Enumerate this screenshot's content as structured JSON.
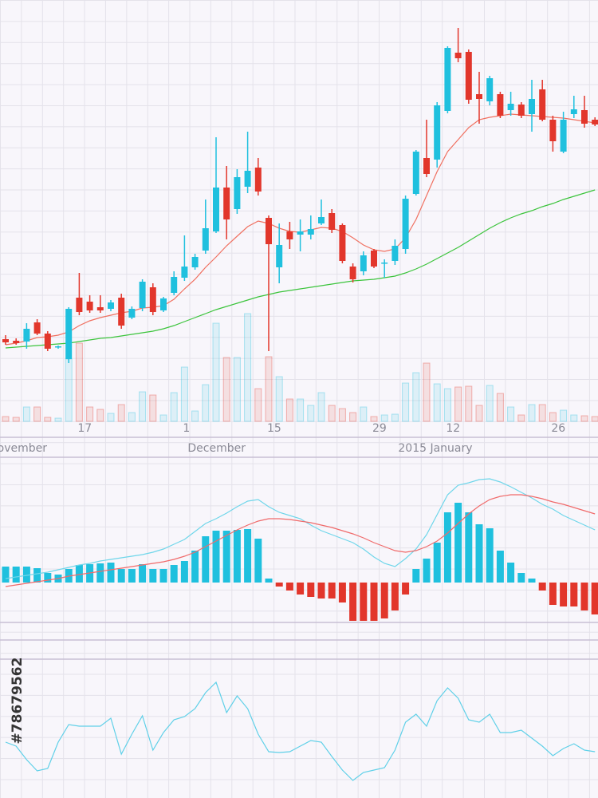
{
  "chart_data": [
    {
      "type": "candlestick",
      "categories": [
        null,
        null,
        null,
        null,
        null,
        null,
        null,
        "17",
        null,
        null,
        null,
        null,
        null,
        null,
        null,
        null,
        null,
        "1",
        null,
        null,
        null,
        null,
        null,
        null,
        null,
        "15",
        null,
        null,
        null,
        null,
        null,
        null,
        null,
        null,
        null,
        "29",
        null,
        null,
        null,
        null,
        null,
        null,
        "12",
        null,
        null,
        null,
        null,
        null,
        null,
        null,
        null,
        null,
        "26",
        null,
        null,
        null,
        null
      ],
      "months": [
        "November",
        null,
        null,
        null,
        null,
        null,
        null,
        null,
        null,
        null,
        null,
        null,
        null,
        null,
        null,
        null,
        null,
        "December",
        null,
        null,
        null,
        null,
        null,
        null,
        null,
        null,
        null,
        null,
        null,
        null,
        null,
        null,
        null,
        null,
        null,
        null,
        null,
        "2015 January",
        null,
        null,
        null,
        null,
        null,
        null,
        null,
        null,
        null,
        null,
        null,
        null,
        null,
        null,
        null,
        null,
        null,
        null,
        null
      ],
      "open": [
        21,
        20.6,
        20.4,
        25.2,
        22.4,
        19,
        16,
        31.4,
        30.4,
        29,
        28.6,
        31.4,
        26.4,
        28.8,
        34,
        28.2,
        32.6,
        36.4,
        39,
        43.2,
        48,
        59,
        53.6,
        59.2,
        64,
        51.4,
        39,
        48,
        47.2,
        47.2,
        50,
        52.6,
        49.6,
        39.2,
        38,
        43.2,
        40,
        40.6,
        43.6,
        57.4,
        66.4,
        66,
        78.2,
        92.8,
        93,
        82.4,
        80.6,
        82.4,
        78.4,
        79.8,
        77.4,
        83.6,
        76,
        68,
        77.4,
        78.4,
        76
      ],
      "high": [
        22,
        21.2,
        25,
        26,
        23,
        19.4,
        29,
        37.6,
        32,
        32,
        30.8,
        32.4,
        29.2,
        36,
        35,
        31.6,
        38,
        47,
        42.4,
        56,
        71.6,
        64.4,
        63.6,
        73,
        66.4,
        52,
        50,
        50.4,
        51,
        52,
        56,
        53.6,
        50,
        40,
        43,
        43.6,
        41,
        46,
        57,
        68.4,
        76,
        80.4,
        94.4,
        99,
        93.6,
        88,
        87,
        83,
        83,
        80.4,
        86,
        86,
        77,
        78,
        82,
        82,
        76.6
      ],
      "low": [
        19.6,
        19.6,
        18.6,
        22,
        18,
        18.6,
        15,
        27,
        27.6,
        27.6,
        28,
        23.6,
        26,
        28,
        27,
        27.8,
        32,
        35.6,
        38.4,
        42.4,
        47.6,
        46,
        52.4,
        57.6,
        57,
        18,
        35,
        43.6,
        43,
        46,
        49.6,
        47.6,
        40,
        35.2,
        37,
        38.8,
        36.4,
        39.6,
        42.4,
        57,
        61.6,
        64,
        77.6,
        90.4,
        80,
        75,
        79.6,
        76.4,
        77,
        76.4,
        73,
        75.6,
        68,
        67.6,
        76.4,
        74,
        74.4
      ],
      "close": [
        20.2,
        20,
        23.6,
        22.4,
        18.6,
        19.2,
        28.6,
        27.8,
        28.2,
        28.2,
        30.2,
        24.4,
        28.6,
        35.4,
        27.8,
        31.2,
        36.6,
        39.2,
        41.6,
        48.8,
        59,
        51,
        61.6,
        63.2,
        58,
        44.8,
        44.6,
        46,
        48,
        48.6,
        51.6,
        48.4,
        40.6,
        36,
        42,
        39.2,
        40.2,
        44.4,
        56.2,
        68,
        62.4,
        79.6,
        94,
        91.4,
        81,
        81.2,
        86.4,
        77,
        80,
        77,
        81.2,
        76,
        70.6,
        76,
        78.6,
        75,
        74.8
      ],
      "up_color": "#1fc0de",
      "down_color": "#e2362b",
      "series": [
        {
          "color": "#f07060",
          "values": [
            19.6,
            20,
            20.6,
            21.4,
            21.6,
            22,
            22.8,
            24.4,
            25.6,
            26.4,
            27,
            27.6,
            28,
            28.8,
            29,
            29.4,
            31,
            33.6,
            36,
            39,
            41.6,
            44.4,
            46.8,
            49.2,
            50.6,
            50,
            48.8,
            48,
            47.8,
            48.4,
            49,
            48.8,
            48,
            46.4,
            44.6,
            43.4,
            43,
            43.6,
            46.4,
            51,
            57,
            63,
            68,
            71,
            74,
            76,
            76.6,
            77,
            77.4,
            77.2,
            77,
            76.8,
            76.6,
            76.4,
            76,
            75.6,
            75.2
          ]
        },
        {
          "color": "#3cc43c",
          "values": [
            18.8,
            19,
            19.2,
            19.4,
            19.6,
            19.8,
            20,
            20.4,
            20.8,
            21.2,
            21.4,
            21.8,
            22.2,
            22.6,
            23,
            23.6,
            24.4,
            25.4,
            26.4,
            27.4,
            28.4,
            29.2,
            30,
            30.8,
            31.6,
            32.2,
            32.8,
            33.2,
            33.6,
            34,
            34.4,
            34.8,
            35.2,
            35.6,
            35.8,
            36,
            36.4,
            36.8,
            37.6,
            38.6,
            39.8,
            41.2,
            42.6,
            44,
            45.6,
            47.2,
            48.8,
            50.2,
            51.4,
            52.4,
            53.2,
            54.2,
            55,
            56,
            56.8,
            57.6,
            58.4
          ]
        }
      ],
      "volume": [
        6,
        5,
        18,
        18,
        5,
        4,
        78,
        98,
        18,
        15,
        10,
        21,
        11,
        37,
        33,
        8,
        36,
        68,
        13,
        46,
        123,
        80,
        80,
        135,
        41,
        81,
        56,
        28,
        28,
        20,
        36,
        20,
        16,
        11,
        18,
        6,
        8,
        9,
        48,
        61,
        73,
        47,
        41,
        43,
        44,
        20,
        45,
        35,
        18,
        8,
        21,
        21,
        11,
        14,
        8,
        7,
        6
      ],
      "ylim": [
        0,
        106
      ],
      "y2lim": [
        0,
        150
      ],
      "grid": true
    },
    {
      "type": "macd",
      "values": [
        20,
        20,
        20,
        18,
        12,
        10,
        17,
        22,
        23,
        24,
        25,
        17,
        17,
        23,
        17,
        17,
        22,
        27,
        40,
        58,
        65,
        65,
        66,
        67,
        55,
        5,
        -5,
        -10,
        -15,
        -18,
        -20,
        -20,
        -25,
        -48,
        -48,
        -48,
        -45,
        -35,
        -15,
        17,
        30,
        50,
        88,
        100,
        88,
        73,
        68,
        40,
        25,
        12,
        5,
        -10,
        -28,
        -30,
        -30,
        -35,
        -40
      ],
      "up_color": "#1fc0de",
      "down_color": "#e2362b",
      "series": [
        {
          "color": "#6fd6ea",
          "values": [
            5,
            7,
            9,
            11,
            13,
            16,
            19,
            22,
            24,
            27,
            29,
            31,
            33,
            35,
            38,
            42,
            48,
            54,
            64,
            74,
            80,
            87,
            95,
            102,
            104,
            95,
            88,
            84,
            80,
            72,
            65,
            60,
            55,
            50,
            42,
            32,
            24,
            20,
            30,
            42,
            60,
            85,
            110,
            122,
            125,
            129,
            130,
            126,
            120,
            113,
            106,
            98,
            92,
            84,
            78,
            72,
            66
          ]
        },
        {
          "color": "#f06a6a",
          "values": [
            -5,
            -3,
            -1,
            1,
            3,
            5,
            8,
            10,
            12,
            14,
            16,
            18,
            20,
            22,
            24,
            26,
            29,
            33,
            38,
            45,
            52,
            59,
            66,
            72,
            77,
            80,
            80,
            79,
            77,
            75,
            72,
            69,
            65,
            61,
            56,
            50,
            45,
            40,
            38,
            40,
            45,
            52,
            62,
            74,
            86,
            96,
            104,
            108,
            110,
            110,
            108,
            105,
            101,
            98,
            94,
            90,
            86
          ]
        }
      ],
      "ylim": [
        -50,
        155
      ]
    },
    {
      "type": "line",
      "series": [
        {
          "color": "#5fd0e8",
          "values": [
            70,
            65,
            48,
            34,
            37,
            70,
            92,
            90,
            90,
            90,
            100,
            55,
            80,
            103,
            60,
            82,
            98,
            102,
            112,
            132,
            145,
            107,
            128,
            112,
            80,
            58,
            57,
            58,
            65,
            72,
            70,
            52,
            35,
            22,
            32,
            35,
            38,
            60,
            95,
            105,
            90,
            122,
            138,
            125,
            98,
            95,
            105,
            82,
            82,
            85,
            75,
            65,
            53,
            62,
            68,
            60,
            58
          ]
        }
      ],
      "ylim": [
        0,
        170
      ]
    }
  ],
  "stock_id": "#78679562"
}
